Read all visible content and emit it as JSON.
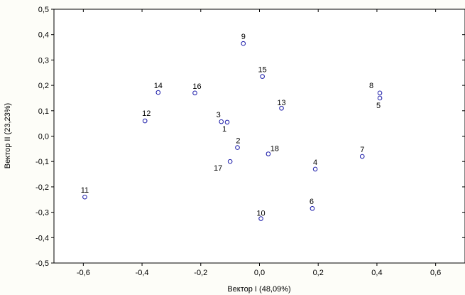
{
  "chart_data": {
    "type": "scatter",
    "xlabel": "Вектор I (48,09%)",
    "ylabel": "Вектор II (23,23%)",
    "xlim": [
      -0.7,
      0.7
    ],
    "ylim": [
      -0.5,
      0.5
    ],
    "x_ticks": [
      "-0,6",
      "-0,4",
      "-0,2",
      "0,0",
      "0,2",
      "0,4",
      "0,6"
    ],
    "y_ticks": [
      "0,5",
      "0,4",
      "0,3",
      "0,2",
      "0,1",
      "0,0",
      "-0,1",
      "-0,2",
      "-0,3",
      "-0,4",
      "-0,5"
    ],
    "grid": false,
    "marker_color": "#1a1aa8",
    "points": [
      {
        "label": "1",
        "x": -0.11,
        "y": 0.055
      },
      {
        "label": "2",
        "x": -0.075,
        "y": -0.045
      },
      {
        "label": "3",
        "x": -0.13,
        "y": 0.057
      },
      {
        "label": "4",
        "x": 0.19,
        "y": -0.13
      },
      {
        "label": "5",
        "x": 0.41,
        "y": 0.15
      },
      {
        "label": "6",
        "x": 0.18,
        "y": -0.285
      },
      {
        "label": "7",
        "x": 0.35,
        "y": -0.08
      },
      {
        "label": "8",
        "x": 0.41,
        "y": 0.17
      },
      {
        "label": "9",
        "x": -0.055,
        "y": 0.365
      },
      {
        "label": "10",
        "x": 0.005,
        "y": -0.325
      },
      {
        "label": "11",
        "x": -0.595,
        "y": -0.24
      },
      {
        "label": "12",
        "x": -0.39,
        "y": 0.06
      },
      {
        "label": "13",
        "x": 0.075,
        "y": 0.11
      },
      {
        "label": "14",
        "x": -0.345,
        "y": 0.172
      },
      {
        "label": "15",
        "x": 0.01,
        "y": 0.235
      },
      {
        "label": "16",
        "x": -0.22,
        "y": 0.17
      },
      {
        "label": "17",
        "x": -0.1,
        "y": -0.1
      },
      {
        "label": "18",
        "x": 0.03,
        "y": -0.07
      }
    ]
  }
}
